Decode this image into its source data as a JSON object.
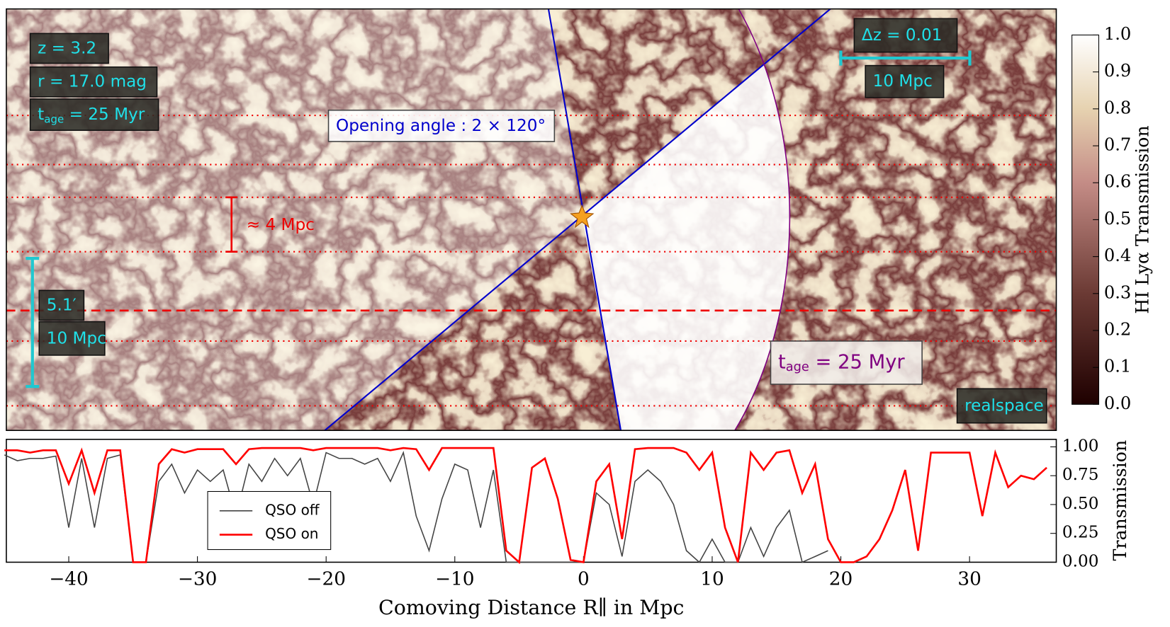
{
  "chart_data": {
    "type": "line",
    "xlabel": "Comoving Distance R∥ in Mpc",
    "ylabel": "Transmission",
    "xlim": [
      -44.85,
      36.74
    ],
    "ylim": [
      0,
      1.065
    ],
    "xticks": [
      {
        "value": -40,
        "label": "−40"
      },
      {
        "value": -30,
        "label": "−30"
      },
      {
        "value": -20,
        "label": "−20"
      },
      {
        "value": -10,
        "label": "−10"
      },
      0,
      10,
      20,
      30
    ],
    "yticks": [
      {
        "value": 0,
        "label": "0.00"
      },
      {
        "value": 0.25,
        "label": "0.25"
      },
      {
        "value": 0.5,
        "label": "0.50"
      },
      {
        "value": 0.75,
        "label": "0.75"
      },
      {
        "value": 1,
        "label": "1.00"
      }
    ],
    "x": [
      -45,
      -44,
      -43,
      -42,
      -41,
      -40,
      -39,
      -38,
      -37,
      -36,
      -35,
      -34,
      -33,
      -32,
      -31,
      -30,
      -29,
      -28,
      -27,
      -26,
      -25,
      -24,
      -23,
      -22,
      -21,
      -20,
      -19,
      -18,
      -17,
      -16,
      -15,
      -14,
      -13,
      -12,
      -11,
      -10,
      -9,
      -8,
      -7,
      -6,
      -5,
      -4,
      -3,
      -2,
      -1,
      0,
      1,
      2,
      3,
      4,
      5,
      6,
      7,
      8,
      9,
      10,
      11,
      12,
      13,
      14,
      15,
      16,
      17,
      18,
      19,
      20,
      21,
      22,
      23,
      24,
      25,
      26,
      27,
      28,
      29,
      30,
      31,
      32,
      33,
      34,
      35,
      36
    ],
    "series": [
      {
        "name": "QSO off",
        "color": "#444444",
        "values": [
          0.93,
          0.88,
          0.9,
          0.9,
          0.92,
          0.3,
          0.9,
          0.3,
          0.9,
          0.93,
          0,
          0,
          0.7,
          0.85,
          0.6,
          0.8,
          0.7,
          0.8,
          0.4,
          0.85,
          0.7,
          0.9,
          0.75,
          0.9,
          0.5,
          0.95,
          0.9,
          0.9,
          0.85,
          0.9,
          0.7,
          0.95,
          0.4,
          0.1,
          0.55,
          0.85,
          0.8,
          0.3,
          0.8,
          0,
          0,
          0,
          0,
          0,
          0,
          0,
          0.6,
          0.5,
          0.05,
          0.7,
          0.8,
          0.7,
          0.5,
          0.1,
          0,
          0.2,
          0,
          0,
          0.3,
          0.05,
          0.3,
          0.45,
          0,
          0.05,
          0.1,
          null,
          null,
          null,
          null,
          null,
          null,
          null,
          null,
          null,
          null,
          null,
          null,
          null,
          null,
          null,
          null,
          null
        ]
      },
      {
        "name": "QSO on",
        "color": "#ff0000",
        "values": [
          0.97,
          0.97,
          0.95,
          0.97,
          0.97,
          0.68,
          0.97,
          0.6,
          0.97,
          0.97,
          0,
          0,
          0.85,
          0.98,
          0.95,
          0.98,
          0.98,
          0.98,
          0.85,
          0.98,
          0.99,
          0.99,
          0.99,
          0.99,
          0.97,
          0.99,
          0.99,
          0.99,
          0.99,
          0.99,
          0.97,
          0.99,
          0.98,
          0.8,
          0.99,
          0.99,
          0.99,
          0.99,
          0.99,
          0.1,
          0,
          0.82,
          0.9,
          0.55,
          0.02,
          0,
          0.7,
          0.85,
          0.2,
          0.98,
          0.99,
          0.99,
          0.99,
          0.95,
          0.8,
          0.95,
          0.3,
          0,
          0.95,
          0.8,
          0.95,
          0.97,
          0.6,
          0.85,
          0.2,
          0,
          0,
          0.05,
          0.2,
          0.45,
          0.8,
          0.1,
          0.95,
          0.95,
          0.95,
          0.95,
          0.4,
          0.95,
          0.65,
          0.75,
          0.72,
          0.82
        ]
      }
    ],
    "colorbar": {
      "label": "HI Lyα Transmission",
      "lim": [
        0,
        1
      ],
      "ticks": [
        {
          "value": 0,
          "label": "0.0"
        },
        {
          "value": 0.1,
          "label": "0.1"
        },
        {
          "value": 0.2,
          "label": "0.2"
        },
        {
          "value": 0.3,
          "label": "0.3"
        },
        {
          "value": 0.4,
          "label": "0.4"
        },
        {
          "value": 0.5,
          "label": "0.5"
        },
        {
          "value": 0.6,
          "label": "0.6"
        },
        {
          "value": 0.7,
          "label": "0.7"
        },
        {
          "value": 0.8,
          "label": "0.8"
        },
        {
          "value": 0.9,
          "label": "0.9"
        },
        {
          "value": 1,
          "label": "1.0"
        }
      ]
    },
    "annotations": [
      {
        "parts": [
          "z = 3.2"
        ]
      },
      {
        "parts": [
          "r = 17.0 mag"
        ]
      },
      {
        "parts": [
          "t",
          "age",
          " = 25 Myr"
        ]
      },
      {
        "parts": [
          "Opening angle :  2 × 120°"
        ]
      },
      {
        "parts": [
          "≈ 4 Mpc"
        ]
      },
      {
        "parts": [
          "5.1′"
        ]
      },
      {
        "parts": [
          "10 Mpc"
        ]
      },
      {
        "parts": [
          "Δz = 0.01"
        ]
      },
      {
        "parts": [
          "10 Mpc"
        ]
      },
      {
        "parts": [
          "t",
          "age",
          " = 25 Myr"
        ]
      },
      {
        "parts": [
          "realspace"
        ]
      }
    ]
  }
}
